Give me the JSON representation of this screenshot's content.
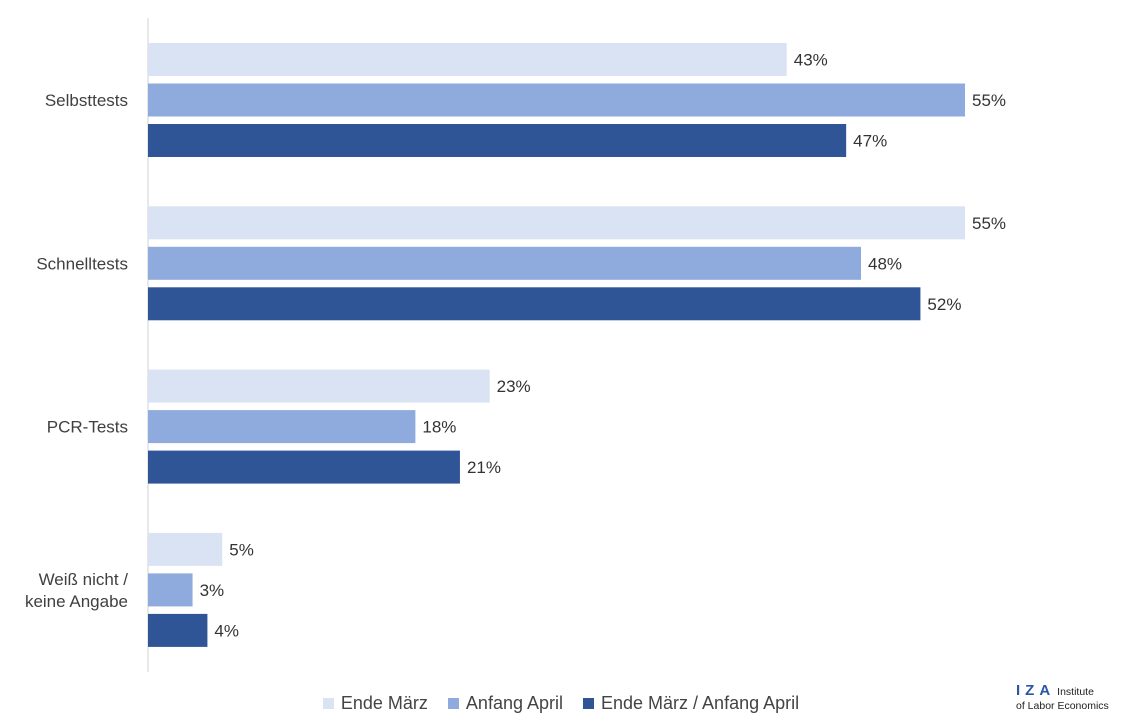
{
  "chart_data": {
    "type": "bar",
    "orientation": "horizontal",
    "categories": [
      "Selbsttests",
      "Schnelltests",
      "PCR-Tests",
      "Weiß nicht / keine Angabe"
    ],
    "category_lines": [
      [
        "Selbsttests"
      ],
      [
        "Schnelltests"
      ],
      [
        "PCR-Tests"
      ],
      [
        "Weiß nicht /",
        "keine Angabe"
      ]
    ],
    "series": [
      {
        "name": "Ende März",
        "values": [
          43,
          55,
          23,
          5
        ],
        "labels": [
          "43%",
          "55%",
          "23%",
          "5%"
        ],
        "color": "#dae3f3"
      },
      {
        "name": "Anfang April",
        "values": [
          55,
          48,
          18,
          3
        ],
        "labels": [
          "55%",
          "48%",
          "18%",
          "3%"
        ],
        "color": "#8faadc"
      },
      {
        "name": "Ende März / Anfang April",
        "values": [
          47,
          52,
          21,
          4
        ],
        "labels": [
          "47%",
          "52%",
          "21%",
          "4%"
        ],
        "color": "#2f5597"
      }
    ],
    "xlim": [
      0,
      60
    ],
    "unit": "%",
    "grid": false,
    "legend_position": "bottom"
  },
  "logo": {
    "mark": "IZA",
    "line1": "Institute",
    "line2": "of Labor Economics"
  }
}
